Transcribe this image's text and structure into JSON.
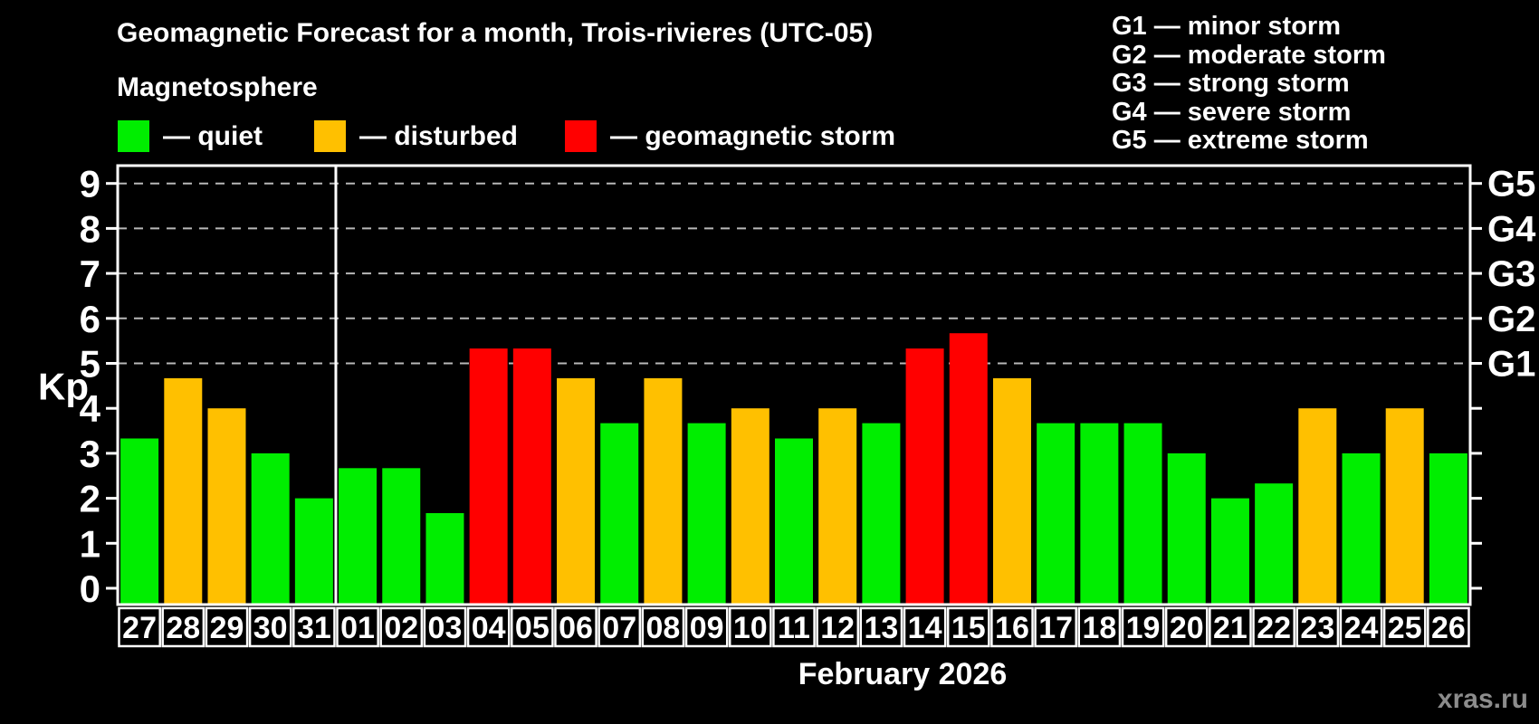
{
  "header": {
    "title": "Geomagnetic Forecast for a month, Trois-rivieres (UTC-05)",
    "subtitle": "Magnetosphere",
    "legend": [
      {
        "key": "quiet",
        "label": "— quiet"
      },
      {
        "key": "disturbed",
        "label": "— disturbed"
      },
      {
        "key": "storm",
        "label": "— geomagnetic storm"
      }
    ],
    "g_scale": [
      "G1 — minor storm",
      "G2 — moderate storm",
      "G3 — strong storm",
      "G4 — severe storm",
      "G5 — extreme storm"
    ]
  },
  "footer": {
    "month_label": "February 2026",
    "watermark": "xras.ru"
  },
  "chart_data": {
    "type": "bar",
    "title": "Geomagnetic Forecast for a month, Trois-rivieres (UTC-05)",
    "ylabel": "Kp",
    "ylim": [
      0,
      9
    ],
    "yticks": [
      0,
      1,
      2,
      3,
      4,
      5,
      6,
      7,
      8,
      9
    ],
    "gridlines_at": [
      5,
      6,
      7,
      8,
      9
    ],
    "grid": "dashed-horizontal",
    "legend_position": "top-left",
    "right_axis": [
      {
        "kp": 5,
        "label": "G1"
      },
      {
        "kp": 6,
        "label": "G2"
      },
      {
        "kp": 7,
        "label": "G3"
      },
      {
        "kp": 8,
        "label": "G4"
      },
      {
        "kp": 9,
        "label": "G5"
      }
    ],
    "palette": {
      "quiet": "#00ee00",
      "disturbed": "#ffc000",
      "storm": "#ff0000"
    },
    "month_separator_after_index": 4,
    "days": [
      {
        "day": "27",
        "kp": 3.33,
        "state": "quiet"
      },
      {
        "day": "28",
        "kp": 4.67,
        "state": "disturbed"
      },
      {
        "day": "29",
        "kp": 4.0,
        "state": "disturbed"
      },
      {
        "day": "30",
        "kp": 3.0,
        "state": "quiet"
      },
      {
        "day": "31",
        "kp": 2.0,
        "state": "quiet"
      },
      {
        "day": "01",
        "kp": 2.67,
        "state": "quiet"
      },
      {
        "day": "02",
        "kp": 2.67,
        "state": "quiet"
      },
      {
        "day": "03",
        "kp": 1.67,
        "state": "quiet"
      },
      {
        "day": "04",
        "kp": 5.33,
        "state": "storm"
      },
      {
        "day": "05",
        "kp": 5.33,
        "state": "storm"
      },
      {
        "day": "06",
        "kp": 4.67,
        "state": "disturbed"
      },
      {
        "day": "07",
        "kp": 3.67,
        "state": "quiet"
      },
      {
        "day": "08",
        "kp": 4.67,
        "state": "disturbed"
      },
      {
        "day": "09",
        "kp": 3.67,
        "state": "quiet"
      },
      {
        "day": "10",
        "kp": 4.0,
        "state": "disturbed"
      },
      {
        "day": "11",
        "kp": 3.33,
        "state": "quiet"
      },
      {
        "day": "12",
        "kp": 4.0,
        "state": "disturbed"
      },
      {
        "day": "13",
        "kp": 3.67,
        "state": "quiet"
      },
      {
        "day": "14",
        "kp": 5.33,
        "state": "storm"
      },
      {
        "day": "15",
        "kp": 5.67,
        "state": "storm"
      },
      {
        "day": "16",
        "kp": 4.67,
        "state": "disturbed"
      },
      {
        "day": "17",
        "kp": 3.67,
        "state": "quiet"
      },
      {
        "day": "18",
        "kp": 3.67,
        "state": "quiet"
      },
      {
        "day": "19",
        "kp": 3.67,
        "state": "quiet"
      },
      {
        "day": "20",
        "kp": 3.0,
        "state": "quiet"
      },
      {
        "day": "21",
        "kp": 2.0,
        "state": "quiet"
      },
      {
        "day": "22",
        "kp": 2.33,
        "state": "quiet"
      },
      {
        "day": "23",
        "kp": 4.0,
        "state": "disturbed"
      },
      {
        "day": "24",
        "kp": 3.0,
        "state": "quiet"
      },
      {
        "day": "25",
        "kp": 4.0,
        "state": "disturbed"
      },
      {
        "day": "26",
        "kp": 3.0,
        "state": "quiet"
      }
    ]
  }
}
